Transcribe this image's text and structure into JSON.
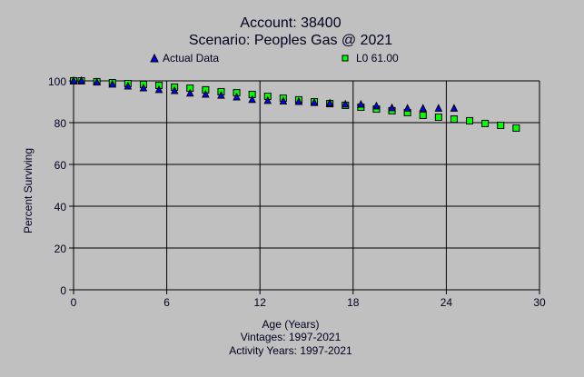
{
  "chart_data": {
    "type": "scatter",
    "title": "Account: 38400",
    "subtitle": "Scenario: Peoples Gas @ 2021",
    "xlabel": "Age (Years)",
    "xlabel_lines": [
      "Vintages: 1997-2021",
      "Activity Years: 1997-2021"
    ],
    "ylabel": "Percent Surviving",
    "xlim": [
      0,
      30
    ],
    "ylim": [
      0,
      100
    ],
    "xticks": [
      0,
      6,
      12,
      18,
      24,
      30
    ],
    "yticks": [
      0,
      20,
      40,
      60,
      80,
      100
    ],
    "grid": true,
    "legend_placement": "top",
    "series": [
      {
        "name": "Actual Data",
        "marker": "triangle",
        "color": "#0000ff",
        "x": [
          0,
          0.5,
          1.5,
          2.5,
          3.5,
          4.5,
          5.5,
          6.5,
          7.5,
          8.5,
          9.5,
          10.5,
          11.5,
          12.5,
          13.5,
          14.5,
          15.5,
          16.5,
          17.5,
          18.5,
          19.5,
          20.5,
          21.5,
          22.5,
          23.5,
          24.5
        ],
        "y": [
          100,
          100,
          99.3,
          98.3,
          97.4,
          96.5,
          95.7,
          95.2,
          94.0,
          93.5,
          93.0,
          92.2,
          91.0,
          90.5,
          90.2,
          90.0,
          89.5,
          89.3,
          88.8,
          88.7,
          87.9,
          87.0,
          86.8,
          86.8,
          86.8,
          86.8
        ]
      },
      {
        "name": "L0 61.00",
        "marker": "square",
        "color": "#00ff00",
        "x": [
          0,
          0.5,
          1.5,
          2.5,
          3.5,
          4.5,
          5.5,
          6.5,
          7.5,
          8.5,
          9.5,
          10.5,
          11.5,
          12.5,
          13.5,
          14.5,
          15.5,
          16.5,
          17.5,
          18.5,
          19.5,
          20.5,
          21.5,
          22.5,
          23.5,
          24.5,
          25.5,
          26.5,
          27.5,
          28.5
        ],
        "y": [
          100,
          100,
          99.6,
          99.1,
          98.7,
          98.3,
          97.8,
          97.0,
          96.5,
          95.7,
          94.8,
          94.3,
          93.5,
          92.6,
          91.7,
          90.9,
          90.0,
          89.1,
          88.3,
          87.4,
          86.5,
          85.7,
          84.8,
          83.5,
          82.6,
          81.7,
          80.9,
          79.6,
          78.7,
          77.4
        ]
      }
    ]
  }
}
